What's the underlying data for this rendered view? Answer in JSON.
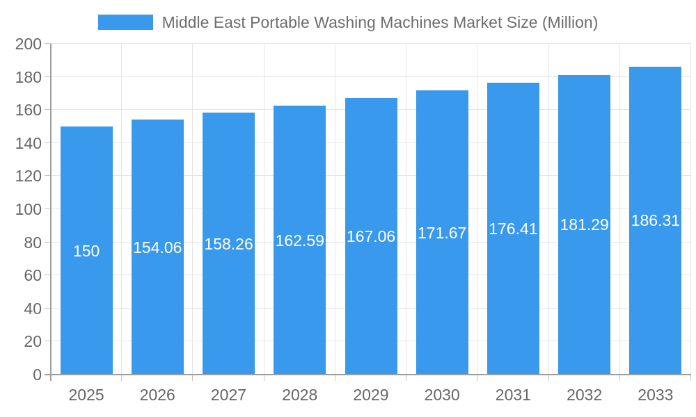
{
  "legend": {
    "label": "Middle East Portable Washing Machines Market Size (Million)"
  },
  "chart_data": {
    "type": "bar",
    "title": "Middle East Portable Washing Machines Market Size (Million)",
    "categories": [
      "2025",
      "2026",
      "2027",
      "2028",
      "2029",
      "2030",
      "2031",
      "2032",
      "2033"
    ],
    "values": [
      150,
      154.06,
      158.26,
      162.59,
      167.06,
      171.67,
      176.41,
      181.29,
      186.31
    ],
    "value_labels": [
      "150",
      "154.06",
      "158.26",
      "162.59",
      "167.06",
      "171.67",
      "176.41",
      "181.29",
      "186.31"
    ],
    "xlabel": "",
    "ylabel": "",
    "ylim": [
      0,
      200
    ],
    "ytick_step": 20,
    "ytick_labels": [
      "0",
      "20",
      "40",
      "60",
      "80",
      "100",
      "120",
      "140",
      "160",
      "180",
      "200"
    ],
    "grid": true,
    "legend_position": "top",
    "colors": {
      "bar": "#3999EC",
      "value_label_text": "#FFFFFF",
      "gridline": "#E6E6E6",
      "axis_line": "#9E9E9E",
      "tick_mark": "#C4C4C4",
      "axis_text": "#666666",
      "legend_text": "#6E6E6E",
      "background": "#FFFFFF"
    }
  }
}
